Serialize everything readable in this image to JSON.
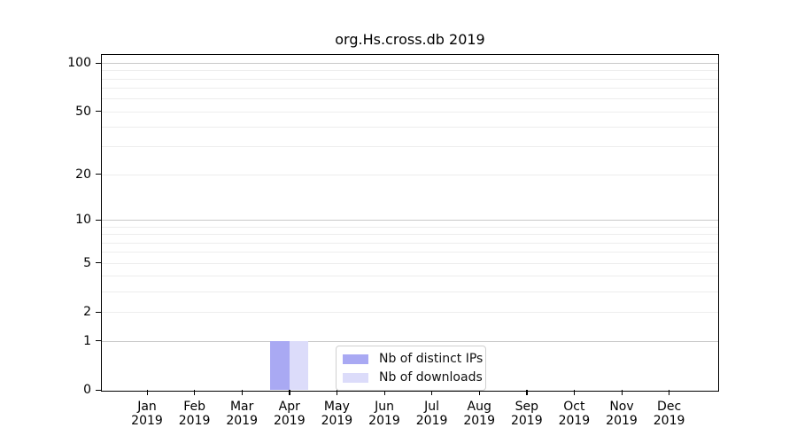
{
  "chart_data": {
    "type": "bar",
    "title": "org.Hs.cross.db 2019",
    "categories": [
      "Jan 2019",
      "Feb 2019",
      "Mar 2019",
      "Apr 2019",
      "May 2019",
      "Jun 2019",
      "Jul 2019",
      "Aug 2019",
      "Sep 2019",
      "Oct 2019",
      "Nov 2019",
      "Dec 2019"
    ],
    "series": [
      {
        "name": "Nb of distinct IPs",
        "color": "#a9a9f3",
        "values": [
          0,
          0,
          0,
          1,
          0,
          0,
          0,
          0,
          0,
          0,
          0,
          0
        ]
      },
      {
        "name": "Nb of downloads",
        "color": "#dcdcfa",
        "values": [
          0,
          0,
          0,
          1,
          0,
          0,
          0,
          0,
          0,
          0,
          0,
          0
        ]
      }
    ],
    "xlabel": "",
    "ylabel": "",
    "yscale": "log1p",
    "ylim": [
      0,
      112
    ],
    "yticks": [
      0,
      1,
      2,
      5,
      10,
      20,
      50,
      100
    ],
    "gridlines": {
      "major": [
        1,
        10,
        100
      ],
      "minor": [
        2,
        3,
        4,
        5,
        6,
        7,
        8,
        9,
        20,
        30,
        40,
        50,
        60,
        70,
        80,
        90
      ],
      "major_color": "#c9c9c9",
      "minor_color": "#ededed"
    },
    "legend": {
      "position": "lower center",
      "entries": [
        "Nb of distinct IPs",
        "Nb of downloads"
      ]
    },
    "axis_color": "#000000",
    "background_color": "#ffffff",
    "grid": true
  }
}
